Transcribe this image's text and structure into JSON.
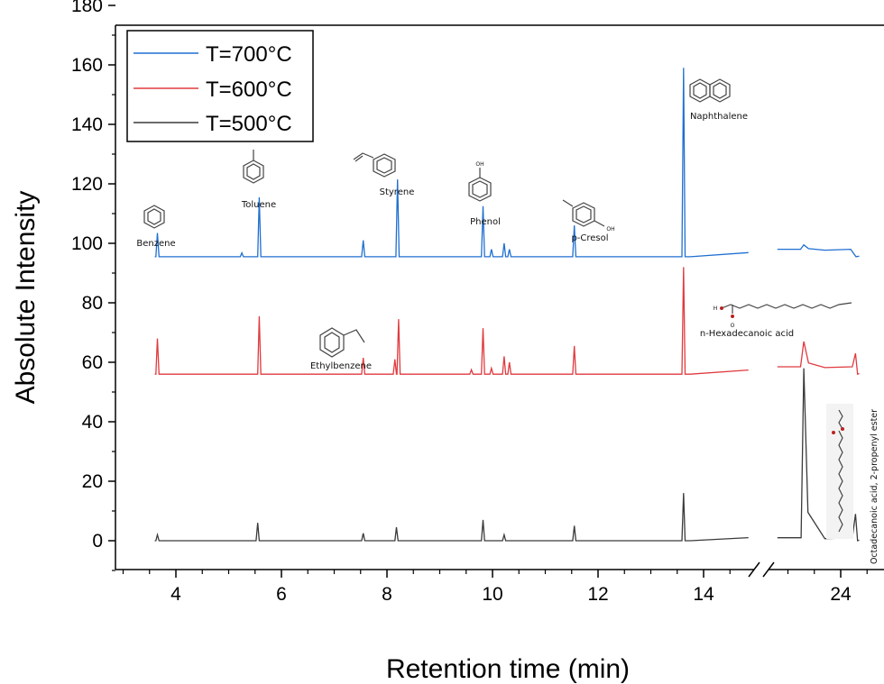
{
  "chart_data": {
    "type": "line",
    "xlabel": "Retention time (min)",
    "ylabel": "Absolute Intensity",
    "ylim": [
      -10,
      180
    ],
    "y_ticks": [
      "0",
      "20",
      "40",
      "60",
      "80",
      "100",
      "120",
      "140",
      "160",
      "180"
    ],
    "y_tick_values": [
      0,
      20,
      40,
      60,
      80,
      100,
      120,
      140,
      160,
      180
    ],
    "x_ticks": [
      "4",
      "6",
      "8",
      "10",
      "12",
      "14",
      "24"
    ],
    "x_tick_values": [
      4,
      6,
      8,
      10,
      12,
      14,
      24
    ],
    "x_axis_break": "between 14 and 24",
    "legend_position": "top-left",
    "series": [
      {
        "name": "T=700°C",
        "color": "#1f6fd1",
        "baseline": 95.5,
        "peaks": [
          {
            "x": 3.65,
            "y": 103.5
          },
          {
            "x": 5.25,
            "y": 96.8
          },
          {
            "x": 5.58,
            "y": 115.5
          },
          {
            "x": 7.55,
            "y": 101
          },
          {
            "x": 8.2,
            "y": 121.5
          },
          {
            "x": 9.82,
            "y": 112.5
          },
          {
            "x": 9.98,
            "y": 98
          },
          {
            "x": 10.22,
            "y": 100
          },
          {
            "x": 10.32,
            "y": 98
          },
          {
            "x": 11.55,
            "y": 106
          },
          {
            "x": 13.62,
            "y": 159
          },
          {
            "x": 23.3,
            "y": 99.5
          },
          {
            "x": 24.25,
            "y": 96.5
          }
        ]
      },
      {
        "name": "T=600°C",
        "color": "#e03a3e",
        "baseline": 56,
        "peaks": [
          {
            "x": 3.65,
            "y": 68
          },
          {
            "x": 5.58,
            "y": 75.5
          },
          {
            "x": 7.55,
            "y": 61.5
          },
          {
            "x": 8.15,
            "y": 61
          },
          {
            "x": 8.22,
            "y": 74.5
          },
          {
            "x": 9.6,
            "y": 57.5
          },
          {
            "x": 9.82,
            "y": 71.5
          },
          {
            "x": 9.98,
            "y": 58
          },
          {
            "x": 10.22,
            "y": 62
          },
          {
            "x": 10.32,
            "y": 60
          },
          {
            "x": 11.55,
            "y": 65.5
          },
          {
            "x": 13.62,
            "y": 92
          },
          {
            "x": 23.3,
            "y": 67
          },
          {
            "x": 24.28,
            "y": 63
          }
        ]
      },
      {
        "name": "T=500°C",
        "color": "#3a3a3a",
        "baseline": 0,
        "peaks": [
          {
            "x": 3.65,
            "y": 2
          },
          {
            "x": 5.55,
            "y": 6
          },
          {
            "x": 7.55,
            "y": 2.5
          },
          {
            "x": 8.18,
            "y": 4.5
          },
          {
            "x": 9.82,
            "y": 7
          },
          {
            "x": 10.22,
            "y": 2
          },
          {
            "x": 11.55,
            "y": 5
          },
          {
            "x": 13.62,
            "y": 16
          },
          {
            "x": 23.3,
            "y": 58
          },
          {
            "x": 24.28,
            "y": 9
          }
        ]
      }
    ],
    "annotations": {
      "benzene": "Benzene",
      "toluene": "Toluene",
      "styrene": "Styrene",
      "phenol": "Phenol",
      "p_cresol": "p-Cresol",
      "naphthalene": "Naphthalene",
      "ethylbenzene": "Ethylbenzene",
      "hexadecanoic": "n-Hexadecanoic acid",
      "octadecanoic": "Octadecanoic acid, 2-propenyl ester",
      "phenol_oh": "OH",
      "cresol_oh": "OH",
      "acid_oh": "H",
      "acid_o": "O"
    }
  }
}
